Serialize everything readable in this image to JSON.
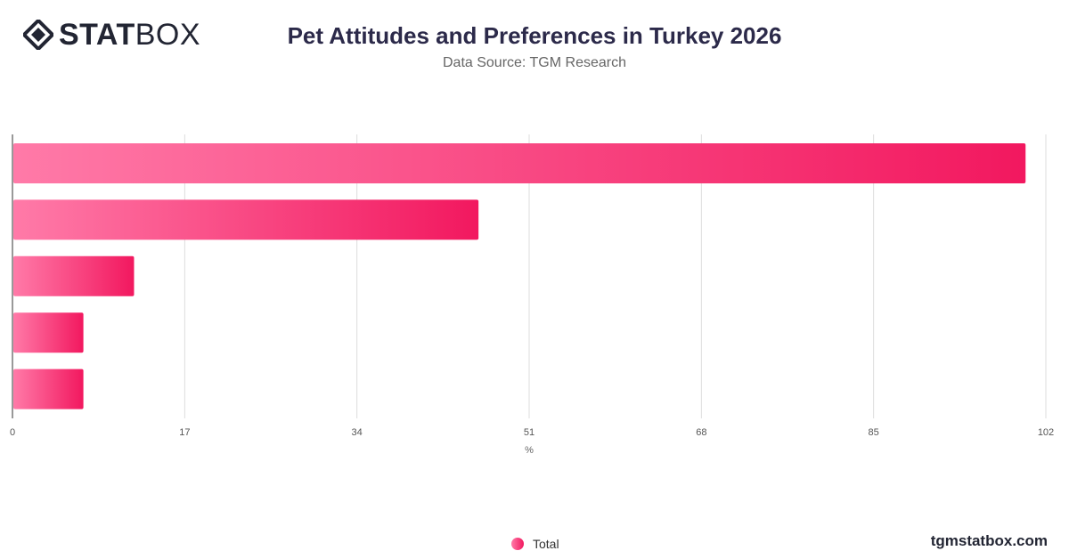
{
  "logo": {
    "bold": "STAT",
    "light": "BOX",
    "icon": "statbox-diamond-icon"
  },
  "header": {
    "title": "Pet Attitudes and Preferences in Turkey 2026",
    "subtitle": "Data Source: TGM Research"
  },
  "footer": {
    "site": "tgmstatbox.com"
  },
  "colors": {
    "bar_start": "#ff7aa8",
    "bar_end": "#f2185f",
    "grid": "#dddddd",
    "axis": "#333333"
  },
  "chart_data": {
    "type": "bar",
    "orientation": "horizontal",
    "categories": [
      "",
      "",
      "",
      "",
      ""
    ],
    "series": [
      {
        "name": "Total",
        "values": [
          100,
          46,
          12,
          7,
          7
        ]
      }
    ],
    "xlim": [
      0,
      102
    ],
    "xticks": [
      0,
      17,
      34,
      51,
      68,
      85,
      102
    ],
    "xlabel": "%",
    "grid": true,
    "legend_position": "bottom-center"
  }
}
